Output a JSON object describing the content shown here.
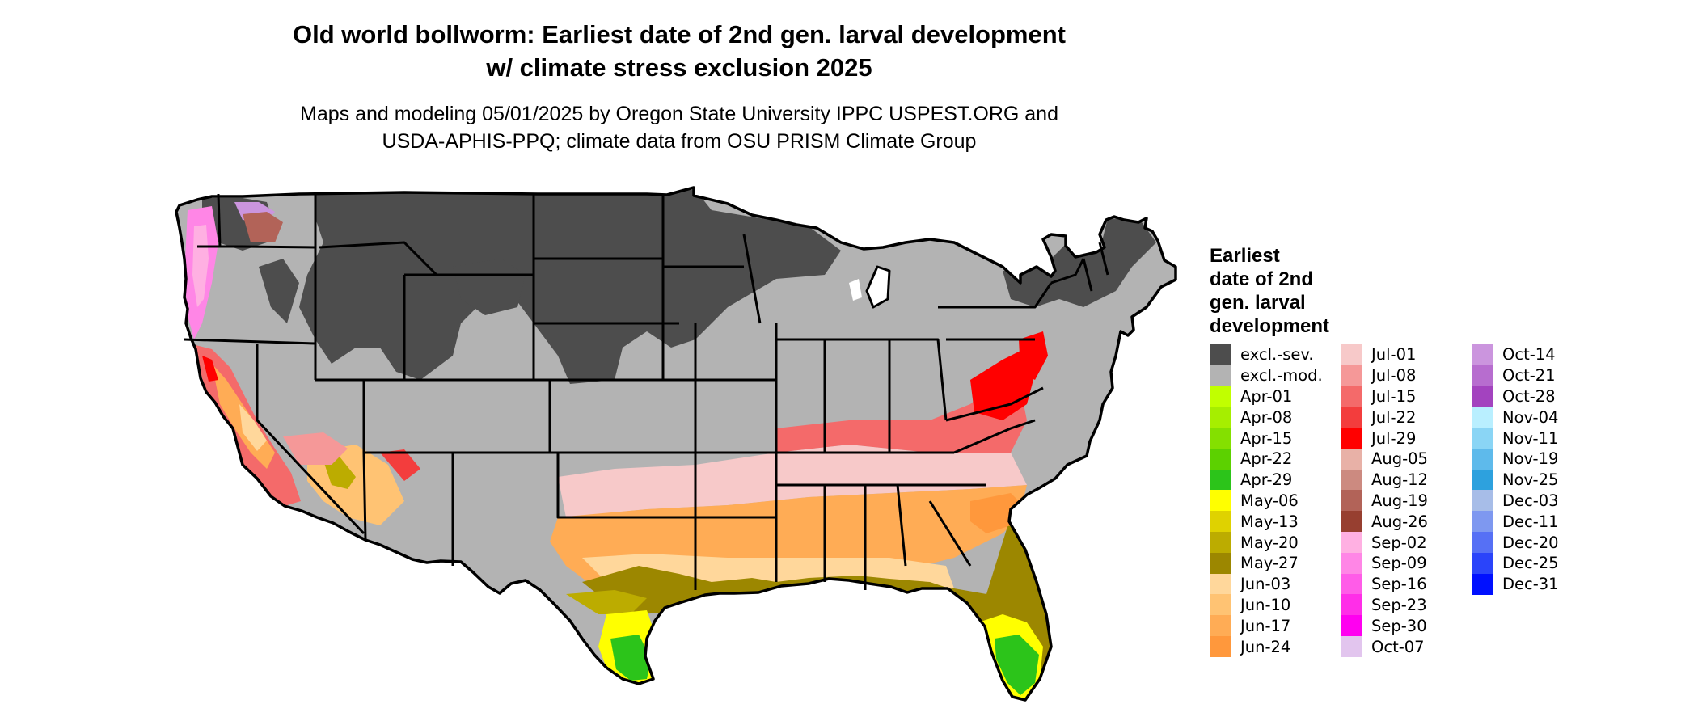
{
  "title": {
    "line1": "Old world bollworm: Earliest date of 2nd gen. larval development",
    "line2": "w/ climate stress exclusion 2025"
  },
  "subtitle": {
    "line1": "Maps and modeling 05/01/2025 by Oregon State University IPPC USPEST.ORG and",
    "line2": "USDA-APHIS-PPQ; climate data from OSU PRISM Climate Group"
  },
  "map": {
    "colors": {
      "excl_sev": "#4d4d4d",
      "excl_mod": "#b3b3b3",
      "water": "#ffffff",
      "border": "#000000"
    }
  },
  "legend": {
    "title_lines": [
      "Earliest",
      "date of 2nd",
      "gen. larval",
      "development"
    ],
    "columns": [
      [
        {
          "label": "excl.-sev.",
          "color": "#4d4d4d"
        },
        {
          "label": "excl.-mod.",
          "color": "#b3b3b3"
        },
        {
          "label": "Apr-01",
          "color": "#c1ff00"
        },
        {
          "label": "Apr-08",
          "color": "#a6ee00"
        },
        {
          "label": "Apr-15",
          "color": "#84e000"
        },
        {
          "label": "Apr-22",
          "color": "#5cd100"
        },
        {
          "label": "Apr-29",
          "color": "#2cc41a"
        },
        {
          "label": "May-06",
          "color": "#ffff00"
        },
        {
          "label": "May-13",
          "color": "#dfd200"
        },
        {
          "label": "May-20",
          "color": "#bcac00"
        },
        {
          "label": "May-27",
          "color": "#9c8700"
        },
        {
          "label": "Jun-03",
          "color": "#ffd79b"
        },
        {
          "label": "Jun-10",
          "color": "#ffc373"
        },
        {
          "label": "Jun-17",
          "color": "#ffac55"
        },
        {
          "label": "Jun-24",
          "color": "#ff983c"
        }
      ],
      [
        {
          "label": "Jul-01",
          "color": "#f7c9c9"
        },
        {
          "label": "Jul-08",
          "color": "#f59898"
        },
        {
          "label": "Jul-15",
          "color": "#f46a6a"
        },
        {
          "label": "Jul-22",
          "color": "#f33d3d"
        },
        {
          "label": "Jul-29",
          "color": "#ff0000"
        },
        {
          "label": "Aug-05",
          "color": "#e8b1a7"
        },
        {
          "label": "Aug-12",
          "color": "#cc8a80"
        },
        {
          "label": "Aug-19",
          "color": "#b26358"
        },
        {
          "label": "Aug-26",
          "color": "#973f30"
        },
        {
          "label": "Sep-02",
          "color": "#ffb0e2"
        },
        {
          "label": "Sep-09",
          "color": "#ff86e6"
        },
        {
          "label": "Sep-16",
          "color": "#ff5ce8"
        },
        {
          "label": "Sep-23",
          "color": "#ff2ee8"
        },
        {
          "label": "Sep-30",
          "color": "#ff00f0"
        },
        {
          "label": "Oct-07",
          "color": "#e2c5ee"
        }
      ],
      [
        {
          "label": "Oct-14",
          "color": "#cb95de"
        },
        {
          "label": "Oct-21",
          "color": "#b76dcf"
        },
        {
          "label": "Oct-28",
          "color": "#a343bf"
        },
        {
          "label": "Nov-04",
          "color": "#b9efff"
        },
        {
          "label": "Nov-11",
          "color": "#8ad5f5"
        },
        {
          "label": "Nov-19",
          "color": "#5ebaeb"
        },
        {
          "label": "Nov-25",
          "color": "#2da1de"
        },
        {
          "label": "Dec-03",
          "color": "#a7bde8"
        },
        {
          "label": "Dec-11",
          "color": "#7e98f0"
        },
        {
          "label": "Dec-20",
          "color": "#5670f5"
        },
        {
          "label": "Dec-25",
          "color": "#2a44fa"
        },
        {
          "label": "Dec-31",
          "color": "#0010ff"
        }
      ]
    ]
  }
}
